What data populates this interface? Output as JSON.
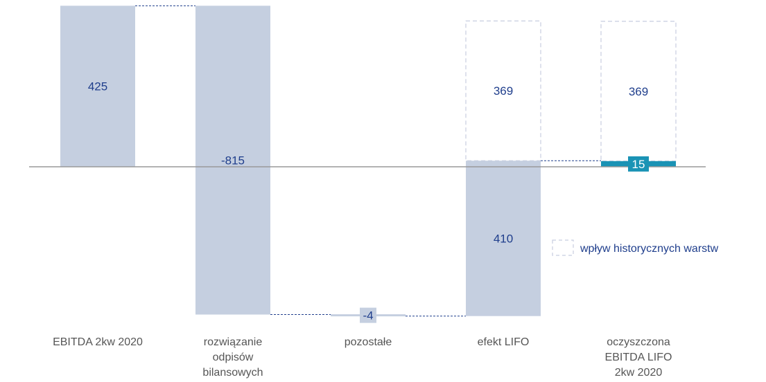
{
  "chart_data": {
    "type": "bar",
    "subtype": "waterfall",
    "categories": [
      [
        "EBITDA 2kw 2020"
      ],
      [
        "rozwiązanie",
        "odpisów",
        "bilansowych"
      ],
      [
        "pozostałe"
      ],
      [
        "efekt LIFO"
      ],
      [
        "oczyszczona",
        "EBITDA LIFO",
        "2kw 2020"
      ]
    ],
    "steps": [
      {
        "kind": "total",
        "start": 0,
        "end": 425,
        "value": 425,
        "label": "425"
      },
      {
        "kind": "delta",
        "start": 425,
        "end": -390,
        "value": -815,
        "label": "-815"
      },
      {
        "kind": "delta",
        "start": -390,
        "end": -394,
        "value": -4,
        "label": "-4"
      },
      {
        "kind": "delta",
        "start": -394,
        "end": 16,
        "value": 410,
        "label": "410",
        "hist_value": 369,
        "hist_label": "369"
      },
      {
        "kind": "total",
        "start": 0,
        "end": 15,
        "value": 15,
        "label": "15",
        "hist_value": 369,
        "hist_label": "369"
      }
    ],
    "legend": {
      "label": "wpływ historycznych warstw",
      "style": "dashed-box"
    },
    "colors": {
      "bar": "#c5cfe0",
      "total_bar": "#1a93b5",
      "connector": "#1f3e8c",
      "hist_box": "#c7cde0",
      "baseline": "#999999",
      "value_text": "#1f3e8c",
      "category_text": "#555555"
    }
  }
}
